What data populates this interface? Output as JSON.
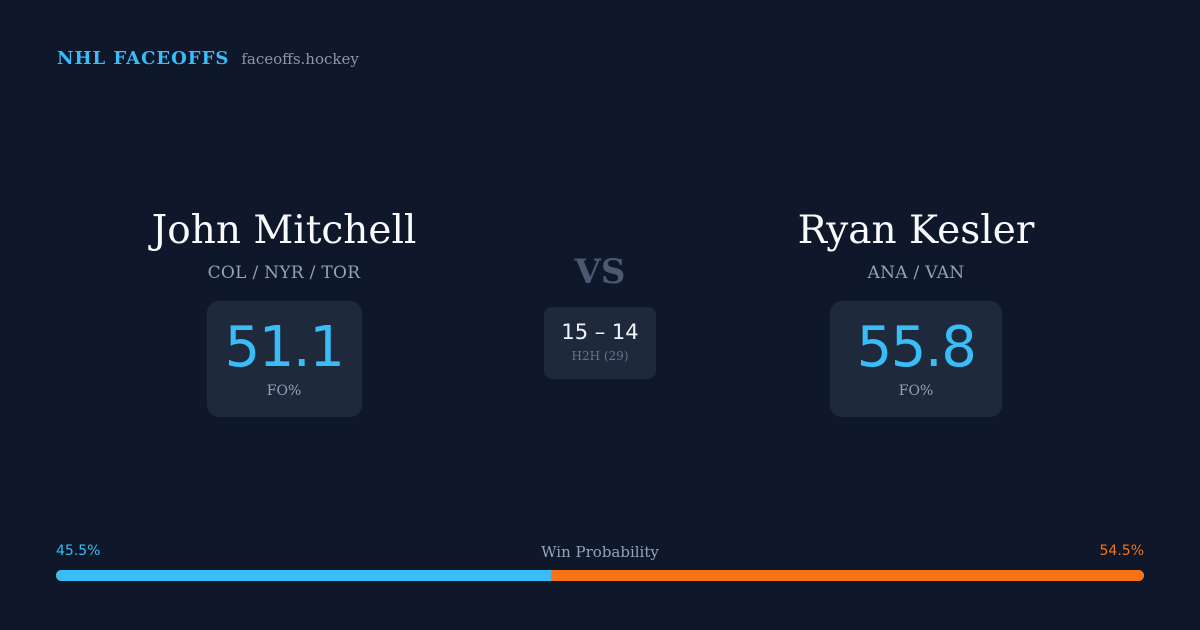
{
  "brand": {
    "name": "NHL FACEOFFS",
    "domain": "faceoffs.hockey"
  },
  "colors": {
    "background": "#0f172a",
    "card": "#1e293b",
    "accent_blue": "#38bdf8",
    "accent_orange": "#f97316"
  },
  "players": {
    "left": {
      "name": "John Mitchell",
      "teams": "COL / NYR / TOR",
      "fo_pct": "51.1",
      "fo_label": "FO%"
    },
    "right": {
      "name": "Ryan Kesler",
      "teams": "ANA / VAN",
      "fo_pct": "55.8",
      "fo_label": "FO%"
    }
  },
  "matchup": {
    "vs": "VS",
    "h2h_score": "15 – 14",
    "h2h_label": "H2H (29)"
  },
  "win_probability": {
    "title": "Win Probability",
    "left_label": "45.5%",
    "right_label": "54.5%",
    "left_value": 45.5,
    "right_value": 54.5
  }
}
